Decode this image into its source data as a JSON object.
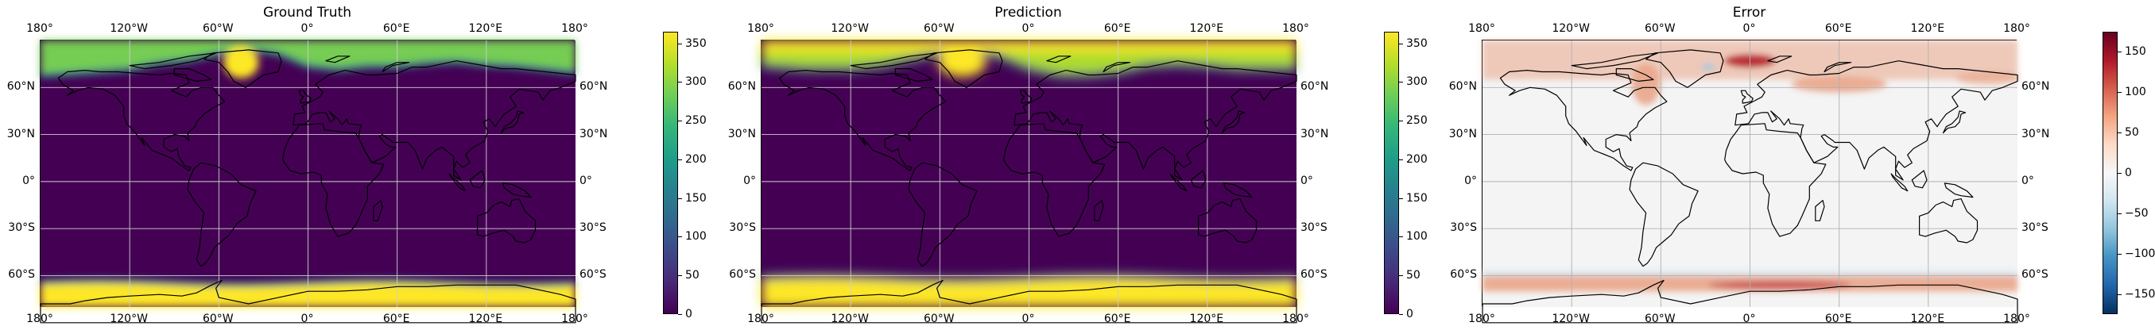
{
  "panels": [
    {
      "id": "truth",
      "title": "Ground Truth"
    },
    {
      "id": "pred",
      "title": "Prediction"
    },
    {
      "id": "error",
      "title": "Error"
    }
  ],
  "lon_ticks": [
    "180°",
    "120°W",
    "60°W",
    "0°",
    "60°E",
    "120°E",
    "180°"
  ],
  "lat_ticks": [
    "60°N",
    "30°N",
    "0°",
    "30°S",
    "60°S"
  ],
  "colorbars": [
    {
      "id": "truth",
      "colormap": "viridis",
      "range": [
        0,
        365
      ],
      "ticks": [
        "350",
        "300",
        "250",
        "200",
        "150",
        "100",
        "50",
        "0"
      ],
      "values": [
        350,
        300,
        250,
        200,
        150,
        100,
        50,
        0
      ]
    },
    {
      "id": "pred",
      "colormap": "viridis",
      "range": [
        0,
        365
      ],
      "ticks": [
        "350",
        "300",
        "250",
        "200",
        "150",
        "100",
        "50",
        "0"
      ],
      "values": [
        350,
        300,
        250,
        200,
        150,
        100,
        50,
        0
      ]
    },
    {
      "id": "error",
      "colormap": "RdBu_r",
      "range": [
        -175,
        175
      ],
      "ticks": [
        "150",
        "100",
        "50",
        "0",
        "−50",
        "−100",
        "−150"
      ],
      "values": [
        150,
        100,
        50,
        0,
        -50,
        -100,
        -150
      ]
    }
  ],
  "colors": {
    "viridis_low": "#440154",
    "viridis_mid": "#21908d",
    "viridis_high": "#fde725",
    "error_neutral": "#f4f4f4",
    "error_positive": "#e9a589",
    "error_strong": "#b2182b"
  }
}
